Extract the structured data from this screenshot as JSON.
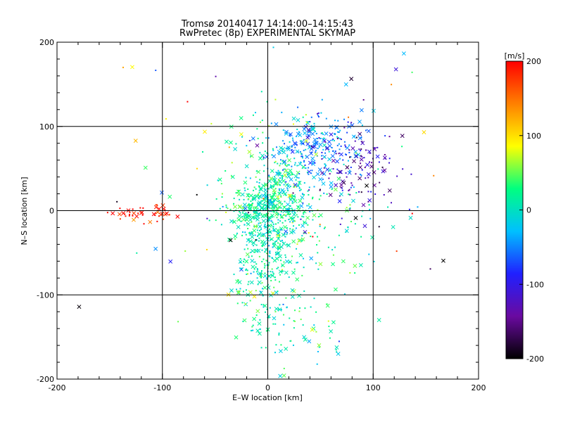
{
  "chart_data": {
    "type": "scatter",
    "title": "Tromsø 20140417 14:14:00–14:15:43",
    "subtitle": "RwPretec (8p) EXPERIMENTAL SKYMAP",
    "xlabel": "E–W location [km]",
    "ylabel": "N–S location [km]",
    "xlim": [
      -200,
      200
    ],
    "ylim": [
      -200,
      200
    ],
    "x_ticks": [
      "-200",
      "-100",
      "0",
      "100",
      "200"
    ],
    "y_ticks": [
      "-200",
      "-100",
      "0",
      "100",
      "200"
    ],
    "grid": true,
    "markers": [
      "x",
      "dot"
    ],
    "colorbar": {
      "label": "[m/s]",
      "range": [
        -200,
        200
      ],
      "ticks": [
        "-200",
        "-100",
        "0",
        "100",
        "200"
      ],
      "colors": [
        "#000000",
        "#6a0aa0",
        "#2020ff",
        "#00c0ff",
        "#00ff80",
        "#ffff00",
        "#ff8000",
        "#ff0000"
      ]
    },
    "clusters": [
      {
        "center": [
          0,
          -30
        ],
        "spread": [
          16,
          55
        ],
        "velocity": 10,
        "velocity_spread": 25,
        "count": 520
      },
      {
        "center": [
          -5,
          5
        ],
        "spread": [
          20,
          15
        ],
        "velocity": 20,
        "velocity_spread": 25,
        "count": 200
      },
      {
        "center": [
          20,
          30
        ],
        "spread": [
          12,
          25
        ],
        "velocity": 0,
        "velocity_spread": 30,
        "count": 130
      },
      {
        "center": [
          45,
          75
        ],
        "spread": [
          22,
          22
        ],
        "velocity": -45,
        "velocity_spread": 25,
        "count": 230
      },
      {
        "center": [
          85,
          55
        ],
        "spread": [
          18,
          28
        ],
        "velocity": -125,
        "velocity_spread": 30,
        "count": 120
      },
      {
        "center": [
          60,
          -20
        ],
        "spread": [
          28,
          35
        ],
        "velocity": 15,
        "velocity_spread": 30,
        "count": 80
      },
      {
        "center": [
          40,
          -140
        ],
        "spread": [
          25,
          20
        ],
        "velocity": 5,
        "velocity_spread": 30,
        "count": 45
      },
      {
        "center": [
          -120,
          -3
        ],
        "spread": [
          15,
          5
        ],
        "velocity": 185,
        "velocity_spread": 20,
        "count": 45
      },
      {
        "center": [
          0,
          30
        ],
        "spread": [
          120,
          80
        ],
        "velocity": 0,
        "velocity_spread": 110,
        "count": 110
      }
    ]
  }
}
